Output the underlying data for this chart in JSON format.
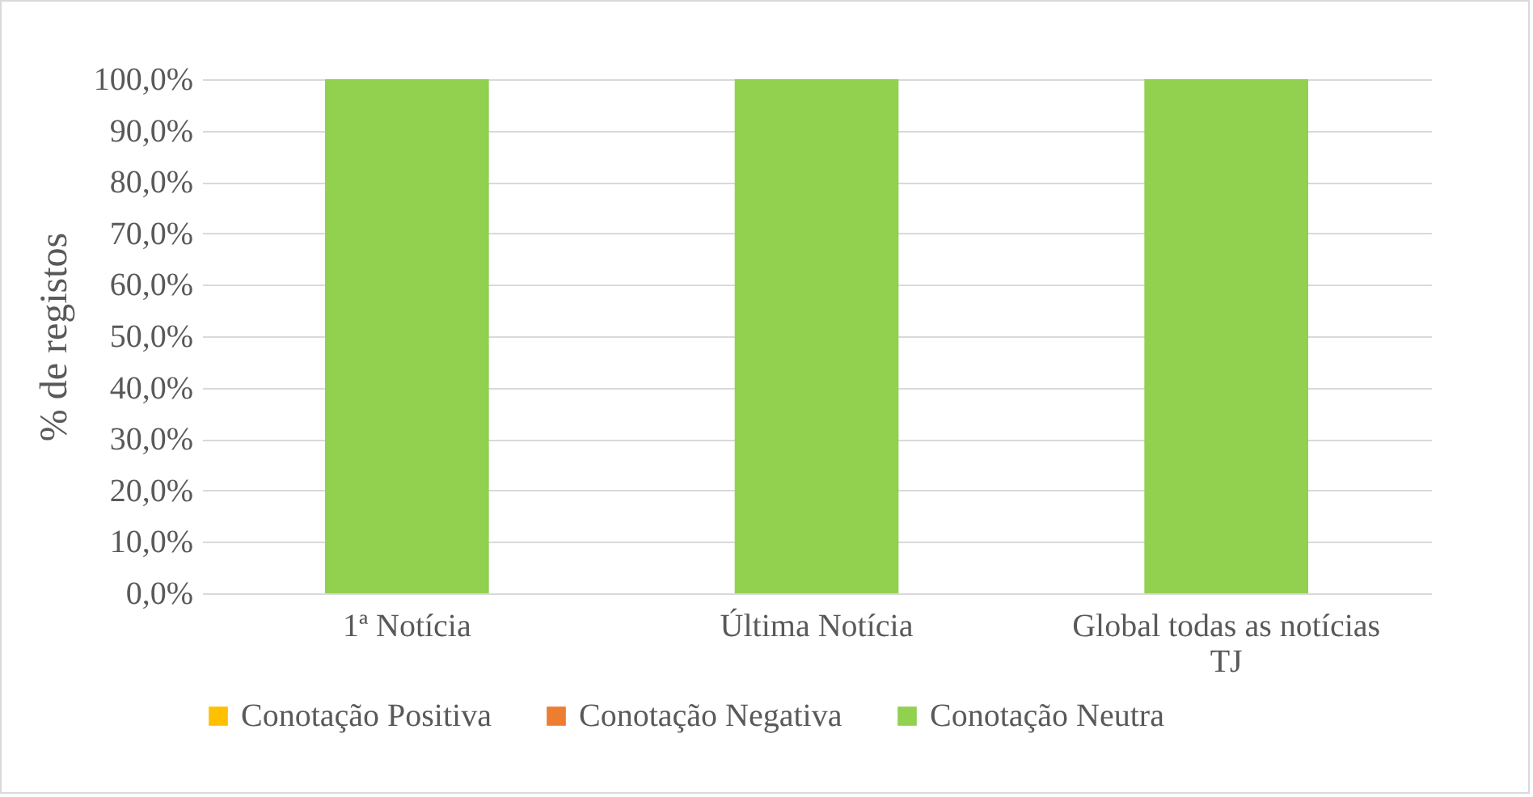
{
  "chart_data": {
    "type": "bar",
    "stacked": true,
    "ylabel": "% de registos",
    "categories": [
      "1ª Notícia",
      "Última Notícia",
      "Global todas as notícias TJ"
    ],
    "series": [
      {
        "name": "Conotação Positiva",
        "color": "#ffc000",
        "values": [
          0,
          0,
          0
        ]
      },
      {
        "name": "Conotação Negativa",
        "color": "#ed7d31",
        "values": [
          0,
          0,
          0
        ]
      },
      {
        "name": "Conotação Neutra",
        "color": "#92d050",
        "values": [
          100,
          100,
          100
        ]
      }
    ],
    "ylim": [
      0,
      100
    ],
    "yticks": [
      {
        "value": 0,
        "label": "0,0%"
      },
      {
        "value": 10,
        "label": "10,0%"
      },
      {
        "value": 20,
        "label": "20,0%"
      },
      {
        "value": 30,
        "label": "30,0%"
      },
      {
        "value": 40,
        "label": "40,0%"
      },
      {
        "value": 50,
        "label": "50,0%"
      },
      {
        "value": 60,
        "label": "60,0%"
      },
      {
        "value": 70,
        "label": "70,0%"
      },
      {
        "value": 80,
        "label": "80,0%"
      },
      {
        "value": 90,
        "label": "90,0%"
      },
      {
        "value": 100,
        "label": "100,0%"
      }
    ],
    "grid": "y",
    "legend": "bottom"
  }
}
